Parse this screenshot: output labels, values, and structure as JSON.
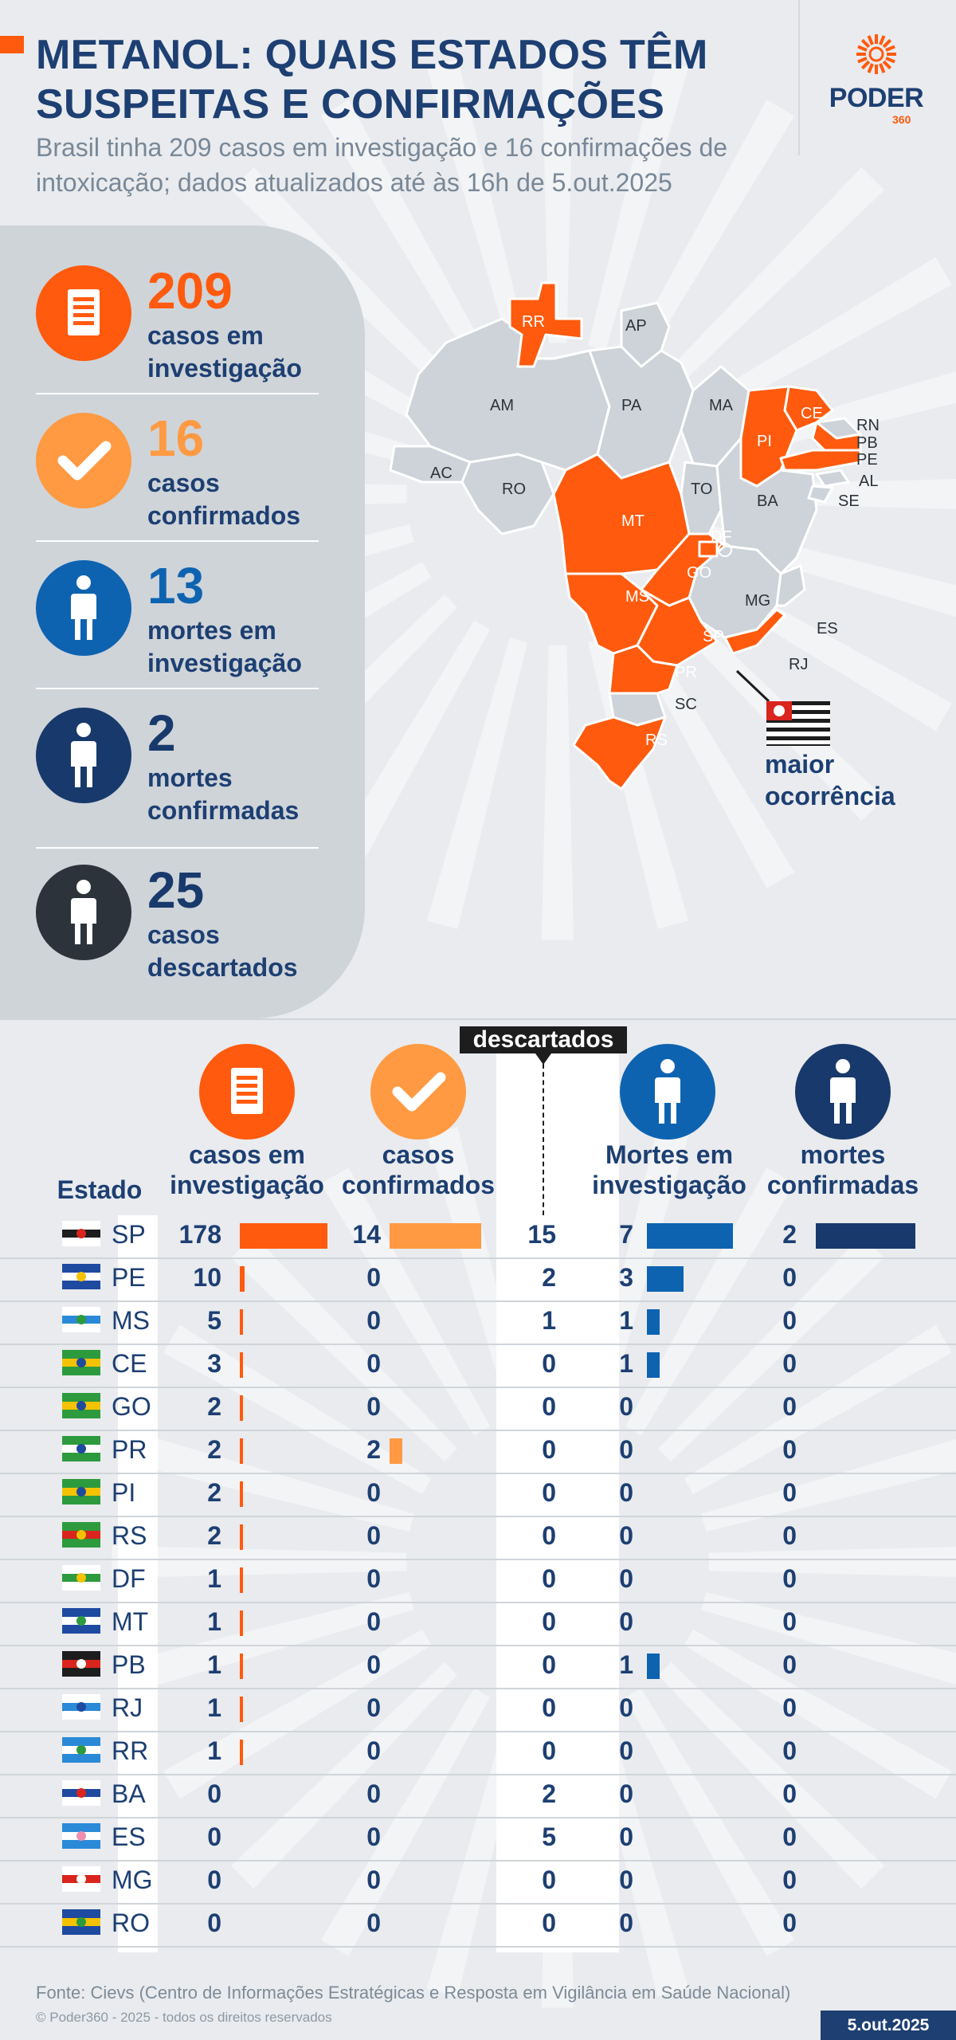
{
  "header": {
    "title": "METANOL: QUAIS ESTADOS TÊM SUSPEITAS E CONFIRMAÇÕES",
    "subtitle": "Brasil tinha 209 casos em investigação e 16 confirmações de intoxicação; dados atualizados até às 16h de 5.out.2025"
  },
  "logo": {
    "name": "PODER",
    "sub": "360"
  },
  "colors": {
    "orange": "#ff5a0d",
    "light_orange": "#ff9a42",
    "blue": "#0e63b1",
    "navy": "#18396b",
    "dark": "#2c333b",
    "grey_state": "#cdd3d8"
  },
  "summary": [
    {
      "value": "209",
      "label": "casos em investigação",
      "icon": "document-icon",
      "color": "#ff5a0d"
    },
    {
      "value": "16",
      "label": "casos confirmados",
      "icon": "check-icon",
      "color": "#ff9a42"
    },
    {
      "value": "13",
      "label": "mortes em investigação",
      "icon": "person-icon",
      "color": "#0e63b1"
    },
    {
      "value": "2",
      "label": "mortes confirmadas",
      "icon": "person-icon",
      "color": "#18396b"
    },
    {
      "value": "25",
      "label": "casos descartados",
      "icon": "person-icon",
      "color": "#2c333b"
    }
  ],
  "map": {
    "highlighted_states": [
      "RR",
      "CE",
      "PI",
      "PB",
      "PE",
      "MT",
      "DF",
      "GO",
      "MS",
      "SP",
      "PR",
      "RS",
      "RJ"
    ],
    "labels": [
      "RR",
      "AP",
      "AM",
      "PA",
      "MA",
      "CE",
      "RN",
      "PB",
      "PE",
      "PI",
      "AL",
      "SE",
      "AC",
      "RO",
      "TO",
      "MT",
      "BA",
      "DF",
      "GO",
      "MG",
      "ES",
      "MS",
      "SP",
      "RJ",
      "PR",
      "SC",
      "RS"
    ],
    "callout": "maior ocorrência"
  },
  "table": {
    "headers": {
      "state": "Estado",
      "investigation": "casos em investigação",
      "confirmed": "casos confirmados",
      "discarded": "descartados",
      "deaths_investigation": "Mortes em investigação",
      "deaths_confirmed": "mortes confirmadas"
    }
  },
  "chart_data": {
    "type": "table",
    "columns": [
      "Estado",
      "casos em investigação",
      "casos confirmados",
      "descartados",
      "Mortes em investigação",
      "mortes confirmadas"
    ],
    "rows": [
      {
        "uf": "SP",
        "investigation": 178,
        "confirmed": 14,
        "discarded": 15,
        "deaths_investigation": 7,
        "deaths_confirmed": 2
      },
      {
        "uf": "PE",
        "investigation": 10,
        "confirmed": 0,
        "discarded": 2,
        "deaths_investigation": 3,
        "deaths_confirmed": 0
      },
      {
        "uf": "MS",
        "investigation": 5,
        "confirmed": 0,
        "discarded": 1,
        "deaths_investigation": 1,
        "deaths_confirmed": 0
      },
      {
        "uf": "CE",
        "investigation": 3,
        "confirmed": 0,
        "discarded": 0,
        "deaths_investigation": 1,
        "deaths_confirmed": 0
      },
      {
        "uf": "GO",
        "investigation": 2,
        "confirmed": 0,
        "discarded": 0,
        "deaths_investigation": 0,
        "deaths_confirmed": 0
      },
      {
        "uf": "PR",
        "investigation": 2,
        "confirmed": 2,
        "discarded": 0,
        "deaths_investigation": 0,
        "deaths_confirmed": 0
      },
      {
        "uf": "PI",
        "investigation": 2,
        "confirmed": 0,
        "discarded": 0,
        "deaths_investigation": 0,
        "deaths_confirmed": 0
      },
      {
        "uf": "RS",
        "investigation": 2,
        "confirmed": 0,
        "discarded": 0,
        "deaths_investigation": 0,
        "deaths_confirmed": 0
      },
      {
        "uf": "DF",
        "investigation": 1,
        "confirmed": 0,
        "discarded": 0,
        "deaths_investigation": 0,
        "deaths_confirmed": 0
      },
      {
        "uf": "MT",
        "investigation": 1,
        "confirmed": 0,
        "discarded": 0,
        "deaths_investigation": 0,
        "deaths_confirmed": 0
      },
      {
        "uf": "PB",
        "investigation": 1,
        "confirmed": 0,
        "discarded": 0,
        "deaths_investigation": 1,
        "deaths_confirmed": 0
      },
      {
        "uf": "RJ",
        "investigation": 1,
        "confirmed": 0,
        "discarded": 0,
        "deaths_investigation": 0,
        "deaths_confirmed": 0
      },
      {
        "uf": "RR",
        "investigation": 1,
        "confirmed": 0,
        "discarded": 0,
        "deaths_investigation": 0,
        "deaths_confirmed": 0
      },
      {
        "uf": "BA",
        "investigation": 0,
        "confirmed": 0,
        "discarded": 2,
        "deaths_investigation": 0,
        "deaths_confirmed": 0
      },
      {
        "uf": "ES",
        "investigation": 0,
        "confirmed": 0,
        "discarded": 5,
        "deaths_investigation": 0,
        "deaths_confirmed": 0
      },
      {
        "uf": "MG",
        "investigation": 0,
        "confirmed": 0,
        "discarded": 0,
        "deaths_investigation": 0,
        "deaths_confirmed": 0
      },
      {
        "uf": "RO",
        "investigation": 0,
        "confirmed": 0,
        "discarded": 0,
        "deaths_investigation": 0,
        "deaths_confirmed": 0
      }
    ]
  },
  "footer": {
    "source": "Fonte: Cievs (Centro de Informações Estratégicas e Resposta em Vigilância em Saúde Nacional)",
    "copyright": "© Poder360 - 2025 - todos os direitos reservados",
    "date": "5.out.2025"
  }
}
